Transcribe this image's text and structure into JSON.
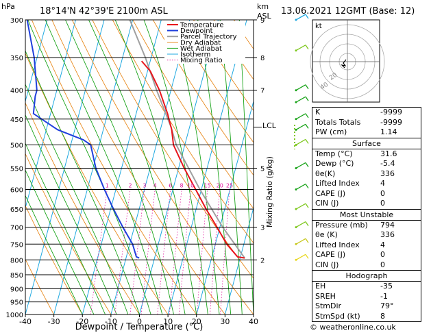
{
  "header": {
    "hpa_label": "hPa",
    "location": "18°14'N  42°39'E  2100m  ASL",
    "km_label": "km",
    "asl_label": "ASL",
    "datetime": "13.06.2021  12GMT  (Base: 12)"
  },
  "legend": [
    "Temperature",
    "Dewpoint",
    "Parcel Trajectory",
    "Dry Adiabat",
    "Wet Adiabat",
    "Isotherm",
    "Mixing Ratio"
  ],
  "colors": {
    "temperature": "#e8141b",
    "dewpoint": "#1f3fdc",
    "parcel": "#a0a0a0",
    "dry_adiabat": "#e88a1e",
    "wet_adiabat": "#19a319",
    "isotherm": "#1ea8e0",
    "mixing_ratio": "#e0189c"
  },
  "chart_data": {
    "type": "skew-t",
    "xlabel": "Dewpoint / Temperature (°C)",
    "ylabel": "Mixing Ratio (g/kg)",
    "x_ticks": [
      -40,
      -30,
      -20,
      -10,
      0,
      10,
      20,
      30,
      40
    ],
    "pressure_levels": [
      300,
      350,
      400,
      450,
      500,
      550,
      600,
      650,
      700,
      750,
      800,
      850,
      900,
      950,
      1000
    ],
    "km_ticks": [
      {
        "p": 300,
        "km": "9"
      },
      {
        "p": 350,
        "km": "8"
      },
      {
        "p": 400,
        "km": "7"
      },
      {
        "p": 550,
        "km": "5"
      },
      {
        "p": 700,
        "km": "3"
      },
      {
        "p": 800,
        "km": "2"
      }
    ],
    "lcl_label": "LCL",
    "lcl_pressure": 465,
    "mixing_ratio_labels": [
      "1",
      "2",
      "3",
      "4",
      "6",
      "8",
      "10",
      "15",
      "20",
      "25"
    ],
    "mixing_ratio_values": [
      1,
      2,
      3,
      4,
      6,
      8,
      10,
      15,
      20,
      25
    ],
    "temperature": [
      {
        "p": 794,
        "t": 31.6
      },
      {
        "p": 790,
        "t": 29
      },
      {
        "p": 750,
        "t": 24
      },
      {
        "p": 700,
        "t": 19
      },
      {
        "p": 650,
        "t": 13.5
      },
      {
        "p": 600,
        "t": 8
      },
      {
        "p": 550,
        "t": 2
      },
      {
        "p": 500,
        "t": -4
      },
      {
        "p": 470,
        "t": -6
      },
      {
        "p": 440,
        "t": -9
      },
      {
        "p": 400,
        "t": -14
      },
      {
        "p": 370,
        "t": -19
      },
      {
        "p": 355,
        "t": -23
      }
    ],
    "dewpoint": [
      {
        "p": 794,
        "t": -5.4
      },
      {
        "p": 790,
        "t": -6.5
      },
      {
        "p": 750,
        "t": -9
      },
      {
        "p": 700,
        "t": -14
      },
      {
        "p": 650,
        "t": -19
      },
      {
        "p": 600,
        "t": -24
      },
      {
        "p": 550,
        "t": -29
      },
      {
        "p": 500,
        "t": -33
      },
      {
        "p": 490,
        "t": -36
      },
      {
        "p": 470,
        "t": -46
      },
      {
        "p": 440,
        "t": -56
      },
      {
        "p": 410,
        "t": -57
      },
      {
        "p": 400,
        "t": -57
      },
      {
        "p": 350,
        "t": -61
      },
      {
        "p": 300,
        "t": -67
      }
    ],
    "parcel": [
      {
        "p": 794,
        "t": 31.6
      },
      {
        "p": 700,
        "t": 21
      },
      {
        "p": 600,
        "t": 9.5
      },
      {
        "p": 500,
        "t": -3
      },
      {
        "p": 465,
        "t": -6.5
      },
      {
        "p": 400,
        "t": -15
      },
      {
        "p": 350,
        "t": -22
      },
      {
        "p": 300,
        "t": -31
      }
    ],
    "wind_barbs": [
      {
        "p": 300,
        "color": "#1ea8e0"
      },
      {
        "p": 340,
        "color": "#7ec81e"
      },
      {
        "p": 400,
        "color": "#19a319"
      },
      {
        "p": 420,
        "color": "#19a319"
      },
      {
        "p": 450,
        "color": "#19a319"
      },
      {
        "p": 470,
        "color": "#19a319"
      },
      {
        "p": 500,
        "color": "#7ec81e"
      },
      {
        "p": 550,
        "color": "#19a319"
      },
      {
        "p": 600,
        "color": "#19a319"
      },
      {
        "p": 650,
        "color": "#7ec81e"
      },
      {
        "p": 700,
        "color": "#7ec81e"
      },
      {
        "p": 750,
        "color": "#c8c81e"
      },
      {
        "p": 800,
        "color": "#e8d81e"
      }
    ]
  },
  "hodograph": {
    "label": "kt",
    "rings": [
      "20",
      "40"
    ]
  },
  "indices": {
    "k_label": "K",
    "k": "-9999",
    "tt_label": "Totals Totals",
    "tt": "-9999",
    "pw_label": "PW (cm)",
    "pw": "1.14"
  },
  "surface": {
    "title": "Surface",
    "temp_label": "Temp (°C)",
    "temp": "31.6",
    "dewp_label": "Dewp (°C)",
    "dewp": "-5.4",
    "theta_label": "θe(K)",
    "theta": "336",
    "li_label": "Lifted Index",
    "li": "4",
    "cape_label": "CAPE (J)",
    "cape": "0",
    "cin_label": "CIN (J)",
    "cin": "0"
  },
  "most_unstable": {
    "title": "Most Unstable",
    "pressure_label": "Pressure (mb)",
    "pressure": "794",
    "theta_label": "θe (K)",
    "theta": "336",
    "li_label": "Lifted Index",
    "li": "4",
    "cape_label": "CAPE (J)",
    "cape": "0",
    "cin_label": "CIN (J)",
    "cin": "0"
  },
  "hodograph_table": {
    "title": "Hodograph",
    "eh_label": "EH",
    "eh": "-35",
    "sreh_label": "SREH",
    "sreh": "-1",
    "stmdir_label": "StmDir",
    "stmdir": "79°",
    "stmspd_label": "StmSpd (kt)",
    "stmspd": "8"
  },
  "footer": "© weatheronline.co.uk"
}
